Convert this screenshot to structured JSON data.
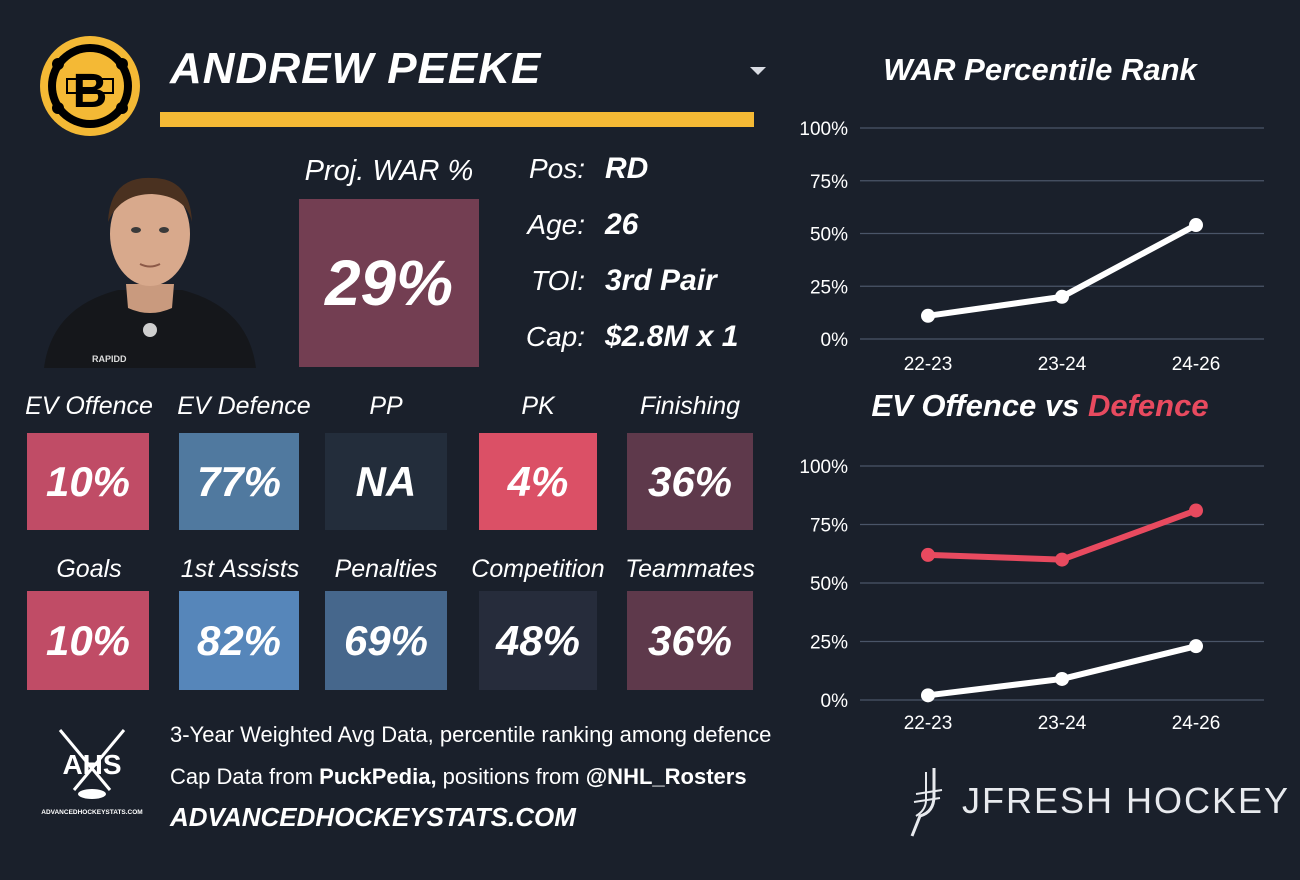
{
  "team": {
    "logo_icon": "boston-bruins-logo",
    "accent": "#f4b935"
  },
  "player": {
    "name": "ANDREW PEEKE",
    "headshot_icon": "player-headshot",
    "proj_war_label": "Proj. WAR %",
    "proj_war_value": "29%",
    "proj_war_color": "#733e52"
  },
  "bio": [
    {
      "label": "Pos:",
      "value": "RD"
    },
    {
      "label": "Age:",
      "value": "26"
    },
    {
      "label": "TOI:",
      "value": "3rd Pair"
    },
    {
      "label": "Cap:",
      "value": "$2.8M x 1"
    }
  ],
  "stats_row1": [
    {
      "label": "EV Offence",
      "value": "10%",
      "color": "#c04c66"
    },
    {
      "label": "EV Defence",
      "value": "77%",
      "color": "#50799f"
    },
    {
      "label": "PP",
      "value": "NA",
      "color": "#232d3b"
    },
    {
      "label": "PK",
      "value": "4%",
      "color": "#db5066"
    },
    {
      "label": "Finishing",
      "value": "36%",
      "color": "#5e394b"
    }
  ],
  "stats_row2": [
    {
      "label": "Goals",
      "value": "10%",
      "color": "#c04c66"
    },
    {
      "label": "1st Assists",
      "value": "82%",
      "color": "#5686ba"
    },
    {
      "label": "Penalties",
      "value": "69%",
      "color": "#46678c"
    },
    {
      "label": "Competition",
      "value": "48%",
      "color": "#262c3b"
    },
    {
      "label": "Teammates",
      "value": "36%",
      "color": "#5e394b"
    }
  ],
  "footer": {
    "ahs_logo_text": "AHS",
    "ahs_logo_subtext": "ADVANCEDHOCKEYSTATS.COM",
    "line1": "3-Year Weighted Avg Data, percentile ranking among defence",
    "line2_a": "Cap Data from ",
    "line2_b": "PuckPedia,",
    "line2_c": " positions from ",
    "line2_d": "@NHL_Rosters",
    "site": "ADVANCEDHOCKEYSTATS.COM"
  },
  "branding": {
    "name": "JFRESH HOCKEY",
    "icon": "jfresh-logo"
  },
  "chart_data": [
    {
      "type": "line",
      "title": "WAR Percentile Rank",
      "categories": [
        "22-23",
        "23-24",
        "24-26"
      ],
      "y_ticks": [
        "100%",
        "75%",
        "50%",
        "25%",
        "0%"
      ],
      "ylim": [
        0,
        100
      ],
      "grid": true,
      "series": [
        {
          "values": [
            11,
            20,
            54
          ],
          "color": "#ffffff"
        }
      ]
    },
    {
      "type": "line",
      "title_part1": "EV Offence vs ",
      "title_part2": "Defence",
      "title_part2_color": "#e84a5f",
      "categories": [
        "22-23",
        "23-24",
        "24-26"
      ],
      "y_ticks": [
        "100%",
        "75%",
        "50%",
        "25%",
        "0%"
      ],
      "ylim": [
        0,
        100
      ],
      "grid": true,
      "series": [
        {
          "values": [
            62,
            60,
            81
          ],
          "color": "#e84a5f"
        },
        {
          "values": [
            2,
            9,
            23
          ],
          "color": "#ffffff"
        }
      ]
    }
  ]
}
